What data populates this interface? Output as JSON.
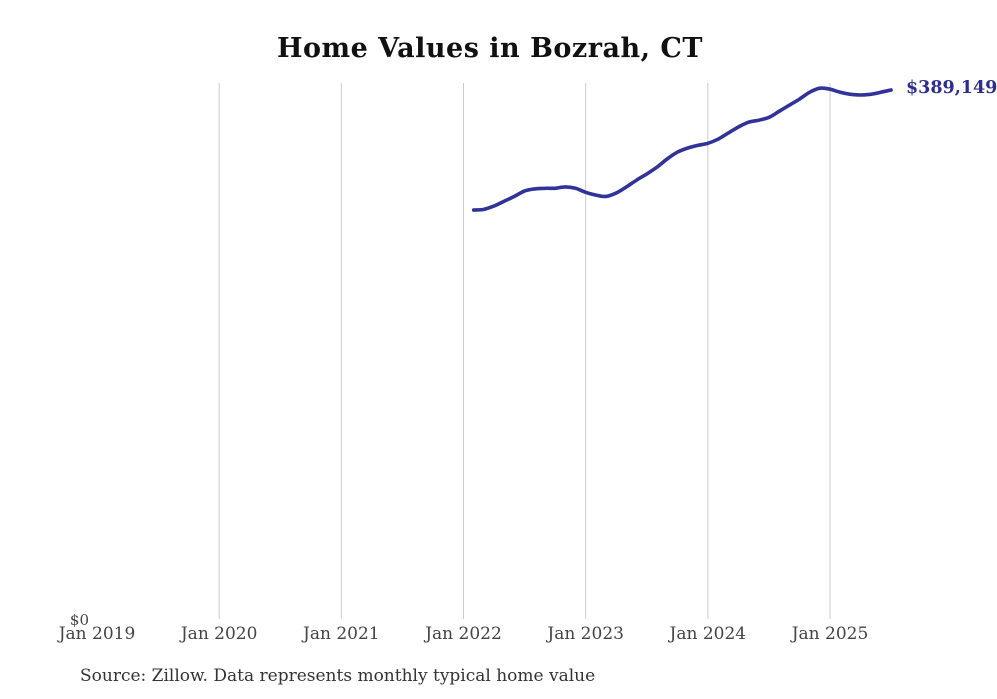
{
  "header": {
    "title": "Home Values in Bozrah, CT"
  },
  "footer": {
    "source_note": "Source: Zillow. Data represents monthly typical home value"
  },
  "chart_data": {
    "type": "line",
    "title": "Home Values in Bozrah, CT",
    "xlabel": "",
    "ylabel": "",
    "legend": "none",
    "grid": "vertical-only",
    "line_color": "#32329b",
    "label_color": "#2c2c96",
    "grid_color": "#cccccc",
    "end_label": "$389,149",
    "y_axis": {
      "zero_label": "$0",
      "min": 0,
      "max_value_shown": 389149
    },
    "x_ticks": [
      {
        "label": "Jan 2019",
        "gridline": false
      },
      {
        "label": "Jan 2020",
        "gridline": true
      },
      {
        "label": "Jan 2021",
        "gridline": true
      },
      {
        "label": "Jan 2022",
        "gridline": true
      },
      {
        "label": "Jan 2023",
        "gridline": true
      },
      {
        "label": "Jan 2024",
        "gridline": true
      },
      {
        "label": "Jan 2025",
        "gridline": true
      }
    ],
    "x": [
      "Feb 2022",
      "Mar 2022",
      "Apr 2022",
      "May 2022",
      "Jun 2022",
      "Jul 2022",
      "Aug 2022",
      "Sep 2022",
      "Oct 2022",
      "Nov 2022",
      "Dec 2022",
      "Jan 2023",
      "Feb 2023",
      "Mar 2023",
      "Apr 2023",
      "May 2023",
      "Jun 2023",
      "Jul 2023",
      "Aug 2023",
      "Sep 2023",
      "Oct 2023",
      "Nov 2023",
      "Dec 2023",
      "Jan 2024",
      "Feb 2024",
      "Mar 2024",
      "Apr 2024",
      "May 2024",
      "Jun 2024",
      "Jul 2024",
      "Aug 2024",
      "Sep 2024",
      "Oct 2024",
      "Nov 2024",
      "Dec 2024",
      "Jan 2025",
      "Feb 2025",
      "Mar 2025",
      "Apr 2025",
      "May 2025",
      "Jun 2025",
      "Jul 2025"
    ],
    "values": [
      301000,
      301500,
      304000,
      307500,
      311000,
      315000,
      316500,
      317000,
      317000,
      318000,
      317000,
      314000,
      312000,
      311000,
      313500,
      318000,
      323000,
      327500,
      332500,
      338500,
      343500,
      346500,
      348500,
      350000,
      353000,
      357500,
      362000,
      365500,
      367000,
      369000,
      373500,
      378000,
      382500,
      387500,
      390500,
      389750,
      387500,
      386000,
      385500,
      386000,
      387500,
      389149
    ]
  }
}
